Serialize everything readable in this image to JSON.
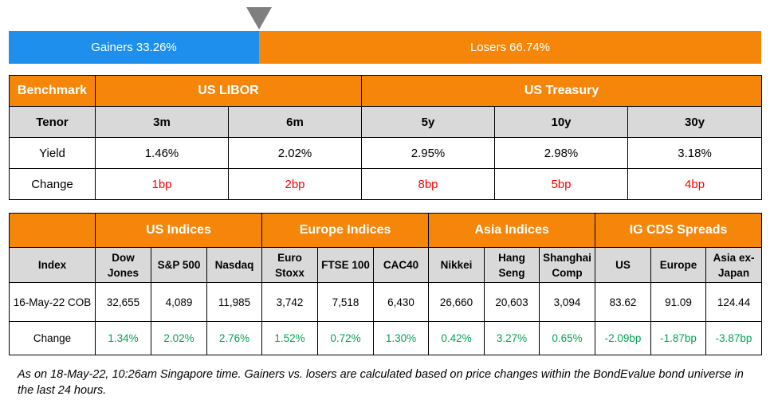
{
  "sentiment": {
    "gainers_label": "Gainers 33.26%",
    "losers_label": "Losers 66.74%",
    "gainers_fraction": 0.3326,
    "colors": {
      "gainers": "#1e8fec",
      "losers": "#f6860a",
      "marker": "#7f7f7f"
    }
  },
  "rates": {
    "benchmark_label": "Benchmark",
    "libor_label": "US LIBOR",
    "treasury_label": "US Treasury",
    "tenor_label": "Tenor",
    "yield_label": "Yield",
    "change_label": "Change",
    "columns": [
      {
        "tenor": "3m",
        "yield": "1.46%",
        "change": "1bp"
      },
      {
        "tenor": "6m",
        "yield": "2.02%",
        "change": "2bp"
      },
      {
        "tenor": "5y",
        "yield": "2.95%",
        "change": "8bp"
      },
      {
        "tenor": "10y",
        "yield": "2.98%",
        "change": "5bp"
      },
      {
        "tenor": "30y",
        "yield": "3.18%",
        "change": "4bp"
      }
    ]
  },
  "indices": {
    "groups": [
      "US Indices",
      "Europe Indices",
      "Asia Indices",
      "IG CDS Spreads"
    ],
    "index_label": "Index",
    "date_label": "16-May-22 COB",
    "change_label": "Change",
    "columns": [
      {
        "name_line1": "Dow",
        "name_line2": "Jones",
        "value": "32,655",
        "change": "1.34%"
      },
      {
        "name_line1": "S&P 500",
        "name_line2": "",
        "value": "4,089",
        "change": "2.02%"
      },
      {
        "name_line1": "Nasdaq",
        "name_line2": "",
        "value": "11,985",
        "change": "2.76%"
      },
      {
        "name_line1": "Euro",
        "name_line2": "Stoxx",
        "value": "3,742",
        "change": "1.52%"
      },
      {
        "name_line1": "FTSE 100",
        "name_line2": "",
        "value": "7,518",
        "change": "0.72%"
      },
      {
        "name_line1": "CAC40",
        "name_line2": "",
        "value": "6,430",
        "change": "1.30%"
      },
      {
        "name_line1": "Nikkei",
        "name_line2": "",
        "value": "26,660",
        "change": "0.42%"
      },
      {
        "name_line1": "Hang",
        "name_line2": "Seng",
        "value": "20,603",
        "change": "3.27%"
      },
      {
        "name_line1": "Shanghai",
        "name_line2": "Comp",
        "value": "3,094",
        "change": "0.65%"
      },
      {
        "name_line1": "US",
        "name_line2": "",
        "value": "83.62",
        "change": "-2.09bp"
      },
      {
        "name_line1": "Europe",
        "name_line2": "",
        "value": "91.09",
        "change": "-1.87bp"
      },
      {
        "name_line1": "Asia ex-",
        "name_line2": "Japan",
        "value": "124.44",
        "change": "-3.87bp"
      }
    ]
  },
  "footnote": "As on 18-May-22, 10:26am Singapore time. Gainers vs. losers are calculated based on price changes within the BondEvalue bond universe in the last 24 hours."
}
